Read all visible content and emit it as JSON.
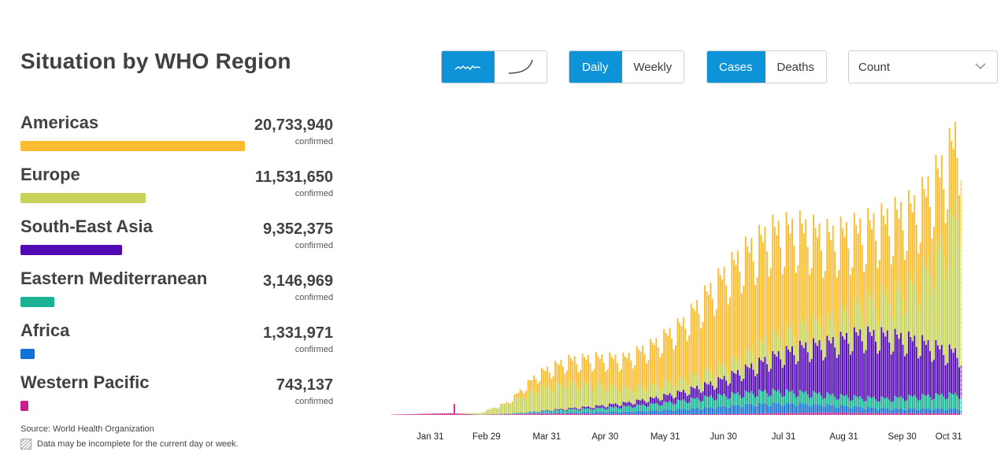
{
  "title": "Situation by WHO Region",
  "toolbar": {
    "chart_type_toggle": {
      "options": [
        "bar-chart-icon",
        "line-chart-icon"
      ],
      "active": 0
    },
    "period_toggle": {
      "options": [
        "Daily",
        "Weekly"
      ],
      "active": 0
    },
    "metric_toggle": {
      "options": [
        "Cases",
        "Deaths"
      ],
      "active": 0
    },
    "measure_select": {
      "value": "Count"
    },
    "active_color": "#0f93d8"
  },
  "regions": [
    {
      "name": "Americas",
      "value": "20,733,940",
      "sub": "confirmed",
      "confirmed": 20733940,
      "color": "#fbbd2f"
    },
    {
      "name": "Europe",
      "value": "11,531,650",
      "sub": "confirmed",
      "confirmed": 11531650,
      "color": "#c7d35a"
    },
    {
      "name": "South-East Asia",
      "value": "9,352,375",
      "sub": "confirmed",
      "confirmed": 9352375,
      "color": "#5208b4"
    },
    {
      "name": "Eastern Mediterranean",
      "value": "3,146,969",
      "sub": "confirmed",
      "confirmed": 3146969,
      "color": "#19b394"
    },
    {
      "name": "Africa",
      "value": "1,331,971",
      "sub": "confirmed",
      "confirmed": 1331971,
      "color": "#1370d6"
    },
    {
      "name": "Western Pacific",
      "value": "743,137",
      "sub": "confirmed",
      "confirmed": 743137,
      "color": "#c8218e"
    }
  ],
  "footer": {
    "source_label": "Source:",
    "source": "World Health Organization",
    "note": "Data may be incomplete for the current day or week."
  },
  "chart_data": {
    "type": "bar",
    "stacked": true,
    "period": "daily",
    "x_ticks": [
      "Jan 31",
      "Feb 29",
      "Mar 31",
      "Apr 30",
      "May 31",
      "Jun 30",
      "Jul 31",
      "Aug 31",
      "Sep 30",
      "Oct 31"
    ],
    "series_order": [
      "Western Pacific",
      "Africa",
      "Eastern Mediterranean",
      "South-East Asia",
      "Europe",
      "Americas"
    ],
    "anchors_note_free": true,
    "anchor_days": [
      0,
      30,
      45,
      60,
      75,
      90,
      105,
      120,
      135,
      150,
      165,
      180,
      195,
      210,
      225,
      240,
      255,
      270,
      285,
      293
    ],
    "anchor_dates": [
      "Jan 11",
      "Feb 10",
      "Feb 25",
      "Mar 11",
      "Mar 26",
      "Apr 10",
      "Apr 25",
      "May 10",
      "May 25",
      "Jun 9",
      "Jun 24",
      "Jul 9",
      "Jul 24",
      "Aug 8",
      "Aug 23",
      "Sep 7",
      "Sep 22",
      "Oct 7",
      "Oct 22",
      "Oct 30"
    ],
    "series": [
      {
        "name": "Western Pacific",
        "color": "#c8218e",
        "anchor_values": [
          500,
          2500,
          300,
          1000,
          2000,
          1800,
          1500,
          1000,
          1000,
          1000,
          1200,
          1500,
          2500,
          3000,
          3500,
          3000,
          2500,
          2500,
          2500,
          2500
        ]
      },
      {
        "name": "Africa",
        "color": "#1370d6",
        "anchor_values": [
          0,
          0,
          0,
          200,
          800,
          1500,
          2500,
          3500,
          5000,
          7000,
          9000,
          12000,
          13000,
          12000,
          10000,
          8000,
          6000,
          6000,
          6000,
          6000
        ]
      },
      {
        "name": "Eastern Mediterranean",
        "color": "#19b394",
        "anchor_values": [
          0,
          0,
          0,
          500,
          2000,
          4000,
          5000,
          7000,
          9000,
          12000,
          15000,
          16000,
          17000,
          16000,
          14000,
          13000,
          14000,
          17000,
          19000,
          20000
        ]
      },
      {
        "name": "South-East Asia",
        "color": "#5208b4",
        "anchor_values": [
          0,
          0,
          0,
          100,
          500,
          1500,
          3000,
          5000,
          8000,
          12000,
          18000,
          30000,
          45000,
          60000,
          70000,
          85000,
          85000,
          75000,
          60000,
          55000
        ]
      },
      {
        "name": "Europe",
        "color": "#c7d35a",
        "anchor_values": [
          0,
          0,
          2000,
          15000,
          30000,
          35000,
          30000,
          20000,
          18000,
          17000,
          18000,
          20000,
          28000,
          30000,
          32000,
          40000,
          55000,
          80000,
          150000,
          220000
        ]
      },
      {
        "name": "Americas",
        "color": "#fbbd2f",
        "anchor_values": [
          0,
          0,
          0,
          1000,
          20000,
          30000,
          35000,
          40000,
          55000,
          75000,
          110000,
          135000,
          140000,
          130000,
          110000,
          100000,
          100000,
          100000,
          100000,
          90000
        ]
      }
    ],
    "ylim": [
      0,
      400000
    ],
    "grid": false,
    "legend": "left panel"
  }
}
